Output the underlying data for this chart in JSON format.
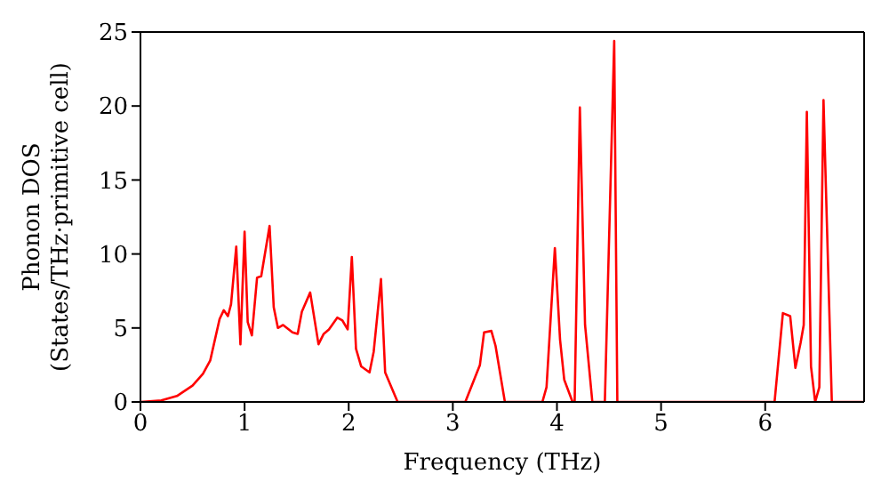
{
  "chart_data": {
    "type": "line",
    "xlabel": "Frequency (THz)",
    "ylabel": "Phonon DOS\n(States/THz·primitive cell)",
    "x": [
      0,
      0.2,
      0.35,
      0.5,
      0.6,
      0.67,
      0.76,
      0.8,
      0.84,
      0.87,
      0.92,
      0.96,
      1.0,
      1.03,
      1.07,
      1.12,
      1.16,
      1.24,
      1.28,
      1.32,
      1.37,
      1.46,
      1.51,
      1.55,
      1.63,
      1.71,
      1.76,
      1.81,
      1.89,
      1.94,
      1.99,
      2.03,
      2.07,
      2.12,
      2.2,
      2.24,
      2.31,
      2.35,
      2.47,
      3.12,
      3.26,
      3.3,
      3.37,
      3.41,
      3.5,
      3.86,
      3.9,
      3.98,
      4.03,
      4.07,
      4.15,
      4.17,
      4.22,
      4.27,
      4.34,
      4.46,
      4.55,
      4.58,
      6.09,
      6.17,
      6.24,
      6.29,
      6.34,
      6.37,
      6.4,
      6.44,
      6.48,
      6.52,
      6.56,
      6.64,
      6.95
    ],
    "series": [
      {
        "color": "#ff0000",
        "values": [
          0,
          0.1,
          0.4,
          1.1,
          1.9,
          2.8,
          5.6,
          6.2,
          5.8,
          6.6,
          10.5,
          3.9,
          11.5,
          5.4,
          4.5,
          8.4,
          8.5,
          11.9,
          6.4,
          5,
          5.2,
          4.7,
          4.6,
          6.1,
          7.4,
          3.9,
          4.6,
          4.9,
          5.7,
          5.5,
          4.9,
          9.8,
          3.6,
          2.4,
          2,
          3.4,
          8.3,
          2,
          0,
          0,
          2.5,
          4.7,
          4.8,
          3.8,
          0,
          0,
          1,
          10.4,
          4.2,
          1.5,
          0,
          0,
          19.9,
          5.2,
          0,
          0,
          24.4,
          0,
          0,
          6,
          5.8,
          2.3,
          4,
          5.2,
          19.6,
          2.4,
          0,
          1,
          20.4,
          0,
          0
        ]
      }
    ],
    "xlim": [
      0,
      6.95
    ],
    "xticks": [
      0,
      1,
      2,
      3,
      4,
      5,
      6
    ],
    "ylim": [
      0,
      25
    ],
    "yticks": [
      0,
      5,
      10,
      15,
      20,
      25
    ],
    "grid": false,
    "legend": false,
    "marker": "none",
    "line_style": "solid"
  }
}
